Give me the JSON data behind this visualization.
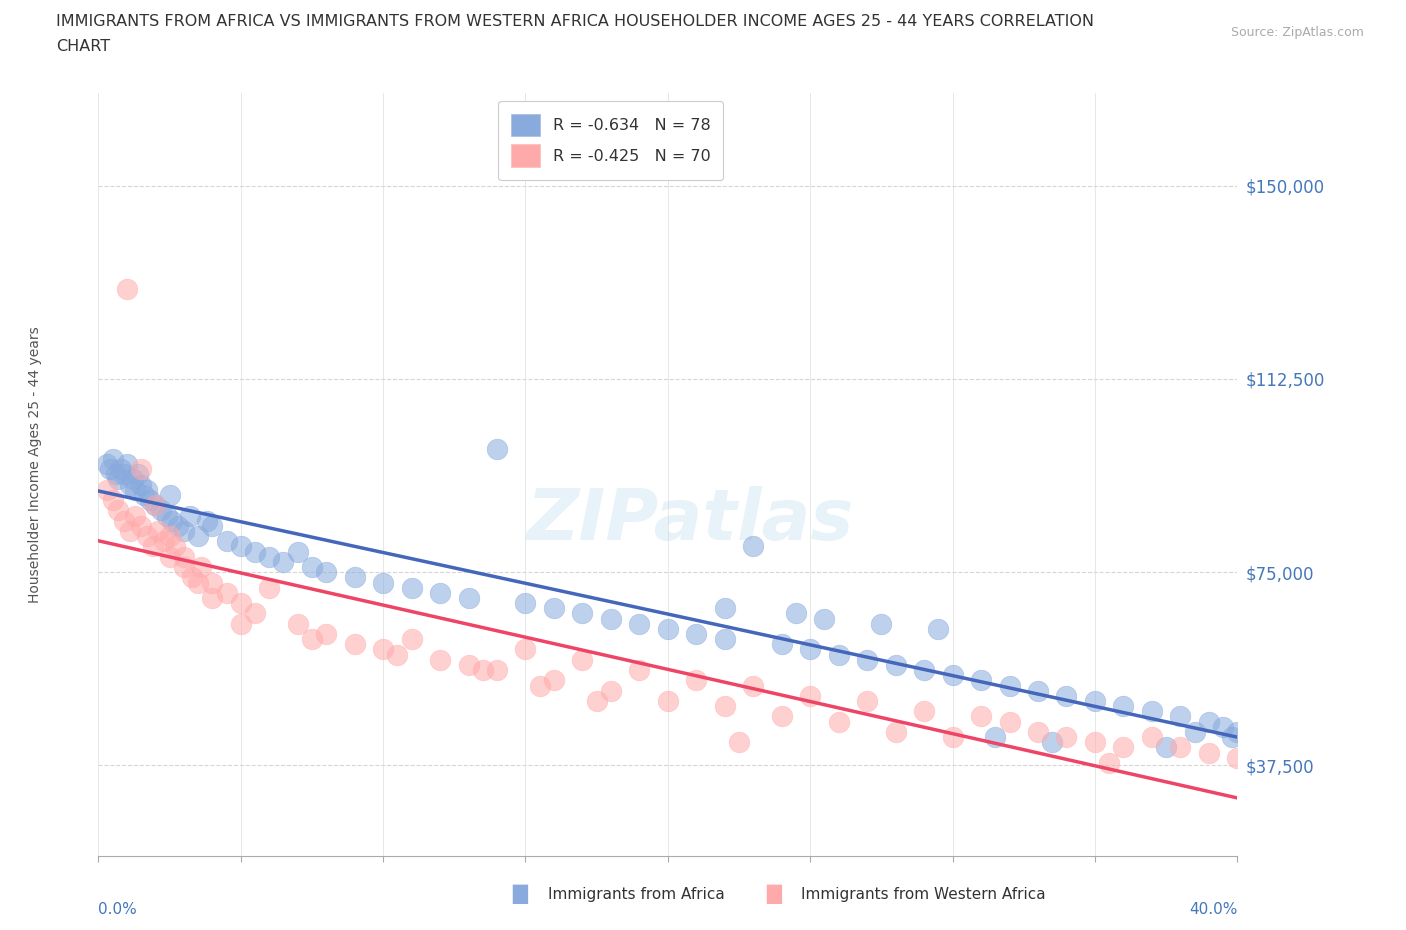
{
  "title_line1": "IMMIGRANTS FROM AFRICA VS IMMIGRANTS FROM WESTERN AFRICA HOUSEHOLDER INCOME AGES 25 - 44 YEARS CORRELATION",
  "title_line2": "CHART",
  "source": "Source: ZipAtlas.com",
  "ylabel": "Householder Income Ages 25 - 44 years",
  "xlim": [
    0.0,
    40.0
  ],
  "ylim": [
    20000,
    168000
  ],
  "yticks": [
    37500,
    75000,
    112500,
    150000
  ],
  "ytick_labels": [
    "$37,500",
    "$75,000",
    "$112,500",
    "$150,000"
  ],
  "grid_color": "#cccccc",
  "bg_color": "#ffffff",
  "blue_color": "#88aadd",
  "pink_color": "#ffaaaa",
  "blue_line_color": "#4466bb",
  "pink_line_color": "#ee4466",
  "legend_R1": "R = -0.634",
  "legend_N1": "N = 78",
  "legend_R2": "R = -0.425",
  "legend_N2": "N = 70",
  "watermark": "ZIPatlas",
  "title_color": "#333333",
  "axis_label_color": "#4477bb",
  "africa_x": [
    0.3,
    0.4,
    0.5,
    0.6,
    0.7,
    0.8,
    0.9,
    1.0,
    1.1,
    1.2,
    1.3,
    1.4,
    1.5,
    1.6,
    1.7,
    1.8,
    2.0,
    2.2,
    2.4,
    2.5,
    2.6,
    2.8,
    3.0,
    3.2,
    3.5,
    3.8,
    4.0,
    4.5,
    5.0,
    5.5,
    6.0,
    6.5,
    7.0,
    7.5,
    8.0,
    9.0,
    10.0,
    11.0,
    12.0,
    13.0,
    14.0,
    15.0,
    16.0,
    17.0,
    18.0,
    19.0,
    20.0,
    21.0,
    22.0,
    23.0,
    24.0,
    25.0,
    26.0,
    27.0,
    28.0,
    29.0,
    30.0,
    31.0,
    32.0,
    33.0,
    34.0,
    35.0,
    36.0,
    37.0,
    38.0,
    39.0,
    39.5,
    40.0,
    22.0,
    24.5,
    25.5,
    27.5,
    29.5,
    31.5,
    33.5,
    37.5,
    38.5,
    39.8
  ],
  "africa_y": [
    96000,
    95000,
    97000,
    94000,
    93000,
    95000,
    94000,
    96000,
    92000,
    93000,
    91000,
    94000,
    92000,
    90000,
    91000,
    89000,
    88000,
    87000,
    86000,
    90000,
    85000,
    84000,
    83000,
    86000,
    82000,
    85000,
    84000,
    81000,
    80000,
    79000,
    78000,
    77000,
    79000,
    76000,
    75000,
    74000,
    73000,
    72000,
    71000,
    70000,
    99000,
    69000,
    68000,
    67000,
    66000,
    65000,
    64000,
    63000,
    62000,
    80000,
    61000,
    60000,
    59000,
    58000,
    57000,
    56000,
    55000,
    54000,
    53000,
    52000,
    51000,
    50000,
    49000,
    48000,
    47000,
    46000,
    45000,
    44000,
    68000,
    67000,
    66000,
    65000,
    64000,
    43000,
    42000,
    41000,
    44000,
    43000
  ],
  "western_x": [
    0.3,
    0.5,
    0.7,
    0.9,
    1.1,
    1.3,
    1.5,
    1.7,
    1.9,
    2.1,
    2.3,
    2.5,
    2.7,
    3.0,
    3.3,
    3.6,
    4.0,
    4.5,
    5.0,
    5.5,
    6.0,
    7.0,
    8.0,
    9.0,
    10.0,
    11.0,
    12.0,
    13.0,
    14.0,
    15.0,
    16.0,
    17.0,
    18.0,
    19.0,
    20.0,
    21.0,
    22.0,
    23.0,
    24.0,
    25.0,
    26.0,
    27.0,
    28.0,
    29.0,
    30.0,
    31.0,
    32.0,
    33.0,
    34.0,
    35.0,
    36.0,
    37.0,
    38.0,
    39.0,
    40.0,
    1.0,
    1.5,
    2.0,
    2.5,
    3.0,
    3.5,
    4.0,
    5.0,
    7.5,
    10.5,
    13.5,
    15.5,
    17.5,
    22.5,
    35.5
  ],
  "western_y": [
    91000,
    89000,
    87000,
    85000,
    83000,
    86000,
    84000,
    82000,
    80000,
    83000,
    81000,
    78000,
    80000,
    76000,
    74000,
    76000,
    73000,
    71000,
    69000,
    67000,
    72000,
    65000,
    63000,
    61000,
    60000,
    62000,
    58000,
    57000,
    56000,
    60000,
    54000,
    58000,
    52000,
    56000,
    50000,
    54000,
    49000,
    53000,
    47000,
    51000,
    46000,
    50000,
    44000,
    48000,
    43000,
    47000,
    46000,
    44000,
    43000,
    42000,
    41000,
    43000,
    41000,
    40000,
    39000,
    130000,
    95000,
    88000,
    82000,
    78000,
    73000,
    70000,
    65000,
    62000,
    59000,
    56000,
    53000,
    50000,
    42000,
    38000
  ]
}
